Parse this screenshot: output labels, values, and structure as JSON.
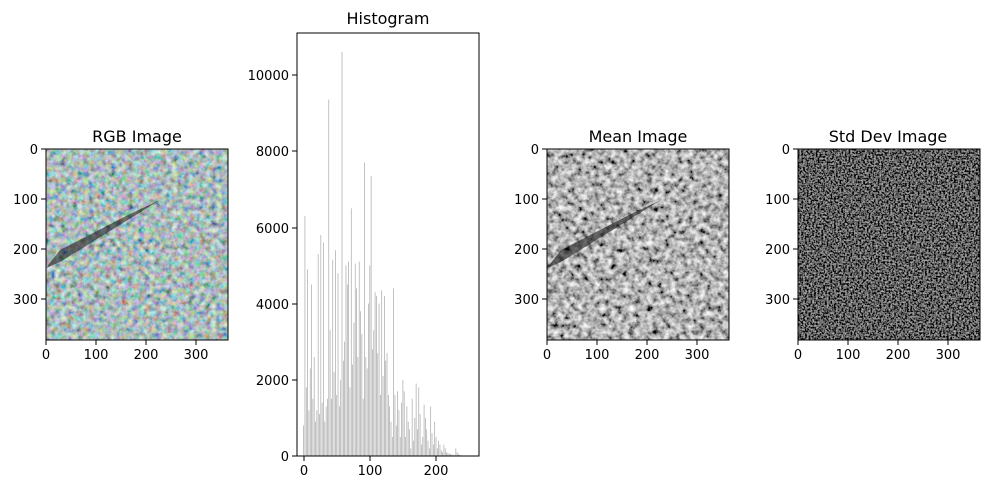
{
  "chart_data": [
    {
      "type": "image",
      "title": "RGB Image",
      "xlim": [
        0,
        369
      ],
      "ylim": [
        381,
        0
      ],
      "x_ticks": [
        "0",
        "100",
        "200",
        "300"
      ],
      "y_ticks": [
        "0",
        "100",
        "200",
        "300"
      ],
      "colormap": "rgb",
      "colors": [
        "#5b6b5e",
        "#2a2224",
        "#8a9a8c",
        "#b7a4c4"
      ]
    },
    {
      "type": "bar",
      "title": "Histogram",
      "xlim": [
        -10,
        265
      ],
      "ylim": [
        0,
        11100
      ],
      "x_ticks": [
        "0",
        "100",
        "200"
      ],
      "y_ticks": [
        "0",
        "2000",
        "4000",
        "6000",
        "8000",
        "10000"
      ],
      "bar_color": "#a9a9a9",
      "x": [
        0,
        2,
        4,
        6,
        8,
        10,
        12,
        14,
        16,
        18,
        20,
        22,
        24,
        26,
        28,
        30,
        32,
        34,
        36,
        38,
        40,
        42,
        44,
        46,
        48,
        50,
        52,
        54,
        56,
        58,
        60,
        62,
        64,
        66,
        68,
        70,
        72,
        74,
        76,
        78,
        80,
        82,
        84,
        86,
        88,
        90,
        92,
        94,
        96,
        98,
        100,
        102,
        104,
        106,
        108,
        110,
        112,
        114,
        116,
        118,
        120,
        122,
        124,
        126,
        128,
        130,
        132,
        134,
        136,
        138,
        140,
        142,
        144,
        146,
        148,
        150,
        152,
        154,
        156,
        158,
        160,
        162,
        164,
        166,
        168,
        170,
        172,
        174,
        176,
        178,
        180,
        182,
        184,
        186,
        188,
        190,
        192,
        194,
        196,
        198,
        200,
        202,
        204,
        206,
        208,
        210,
        212,
        214,
        216,
        218,
        220,
        222,
        224,
        226,
        228,
        230,
        232,
        234,
        236,
        238,
        240,
        242,
        244,
        246,
        248,
        250
      ],
      "values": [
        800,
        6300,
        1800,
        4900,
        1200,
        2300,
        4500,
        1500,
        2600,
        900,
        1200,
        5300,
        1100,
        5800,
        1400,
        5600,
        900,
        1300,
        1500,
        9350,
        3300,
        1500,
        5150,
        2200,
        5400,
        1600,
        4800,
        1300,
        2000,
        10600,
        2500,
        3000,
        5000,
        4500,
        5100,
        1800,
        6500,
        2400,
        3500,
        5050,
        4400,
        2600,
        5100,
        3800,
        3200,
        1500,
        7700,
        2600,
        2300,
        4000,
        5000,
        7350,
        2800,
        3300,
        4300,
        4200,
        2700,
        4000,
        1600,
        4350,
        2100,
        4200,
        2500,
        2700,
        1600,
        1300,
        900,
        500,
        4400,
        1600,
        800,
        1700,
        1200,
        500,
        1400,
        2000,
        1700,
        500,
        1300,
        900,
        700,
        200,
        1500,
        400,
        1000,
        1900,
        700,
        1800,
        1100,
        300,
        500,
        1350,
        1000,
        700,
        400,
        200,
        1300,
        600,
        300,
        900,
        500,
        200,
        400,
        300,
        150,
        100,
        300,
        200,
        100,
        80,
        60,
        50,
        40,
        30,
        20,
        200,
        100,
        50,
        30,
        20,
        10,
        5,
        3,
        2,
        1,
        1
      ]
    },
    {
      "type": "image",
      "title": "Mean Image",
      "xlim": [
        0,
        369
      ],
      "ylim": [
        381,
        0
      ],
      "x_ticks": [
        "0",
        "100",
        "200",
        "300"
      ],
      "y_ticks": [
        "0",
        "100",
        "200",
        "300"
      ],
      "colormap": "gray",
      "colors": [
        "#1a1a1a",
        "#6f6f6f",
        "#c8c8c8"
      ]
    },
    {
      "type": "image",
      "title": "Std Dev Image",
      "xlim": [
        0,
        369
      ],
      "ylim": [
        381,
        0
      ],
      "x_ticks": [
        "0",
        "100",
        "200",
        "300"
      ],
      "y_ticks": [
        "0",
        "100",
        "200",
        "300"
      ],
      "colormap": "gray",
      "colors": [
        "#0d0d0d",
        "#3a3a3a",
        "#9a9a9a"
      ]
    }
  ]
}
